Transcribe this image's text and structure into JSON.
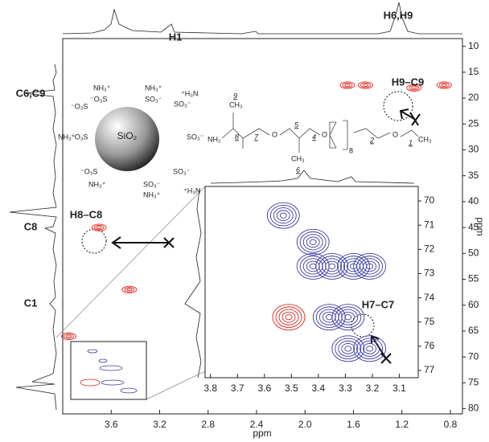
{
  "chart_data": [
    {
      "type": "contour",
      "xlabel": "ppm",
      "ylabel": "ppm",
      "xlim": [
        4.0,
        0.7
      ],
      "ylim": [
        8.5,
        81
      ],
      "xticks": [
        3.6,
        3.2,
        2.8,
        2.4,
        {
          "value": 2,
          "label": "2.0"
        },
        1.6,
        1.2,
        0.8
      ],
      "yticks": [
        10,
        15,
        20,
        25,
        30,
        35,
        40,
        45,
        50,
        55,
        60,
        65,
        70,
        75,
        80
      ],
      "series": [
        {
          "color": "#e0261e",
          "x": [
            1.1,
            1.65,
            1.5,
            0.85,
            3.7,
            3.45,
            3.95
          ],
          "values": [
            18,
            17.5,
            17.5,
            17.5,
            45,
            57,
            66
          ]
        }
      ],
      "annotations": [
        "H6,H9",
        "H1",
        "C6,C9",
        "C8",
        "C1",
        "H9–C9",
        "H8–C8"
      ]
    },
    {
      "type": "contour",
      "xlim": [
        3.82,
        3.03
      ],
      "ylim": [
        69.4,
        77.3
      ],
      "xticks": [
        3.8,
        3.7,
        3.6,
        3.5,
        3.4,
        3.3,
        3.2,
        3.1
      ],
      "yticks": [
        70,
        71,
        72,
        73,
        74,
        75,
        76,
        77
      ],
      "series": [
        {
          "color": "#3b3aa0",
          "x": [
            3.53,
            3.42,
            3.42,
            3.35,
            3.27,
            3.21,
            3.36,
            3.29,
            3.29,
            3.21
          ],
          "values": [
            70.6,
            71.7,
            72.7,
            72.7,
            72.7,
            72.7,
            74.8,
            74.8,
            76.1,
            76.1
          ]
        },
        {
          "color": "#e0261e",
          "x": [
            3.51
          ],
          "values": [
            74.8
          ]
        }
      ],
      "annotations": [
        "H7–C7"
      ]
    }
  ],
  "diagram": {
    "core": "SiO₂",
    "nh3": "NH₃⁺",
    "so3": "SO₃⁻",
    "o3s": "⁻O₃S",
    "h3n": "⁺H₃N",
    "chain": {
      "n9": "9",
      "n8": "8",
      "n7": "7",
      "n5": "5",
      "n4": "4",
      "n6": "6",
      "n2": "2",
      "n1": "1",
      "ch3": "CH₃",
      "o": "O",
      "nh": "NH₂",
      "rep": "8"
    }
  }
}
